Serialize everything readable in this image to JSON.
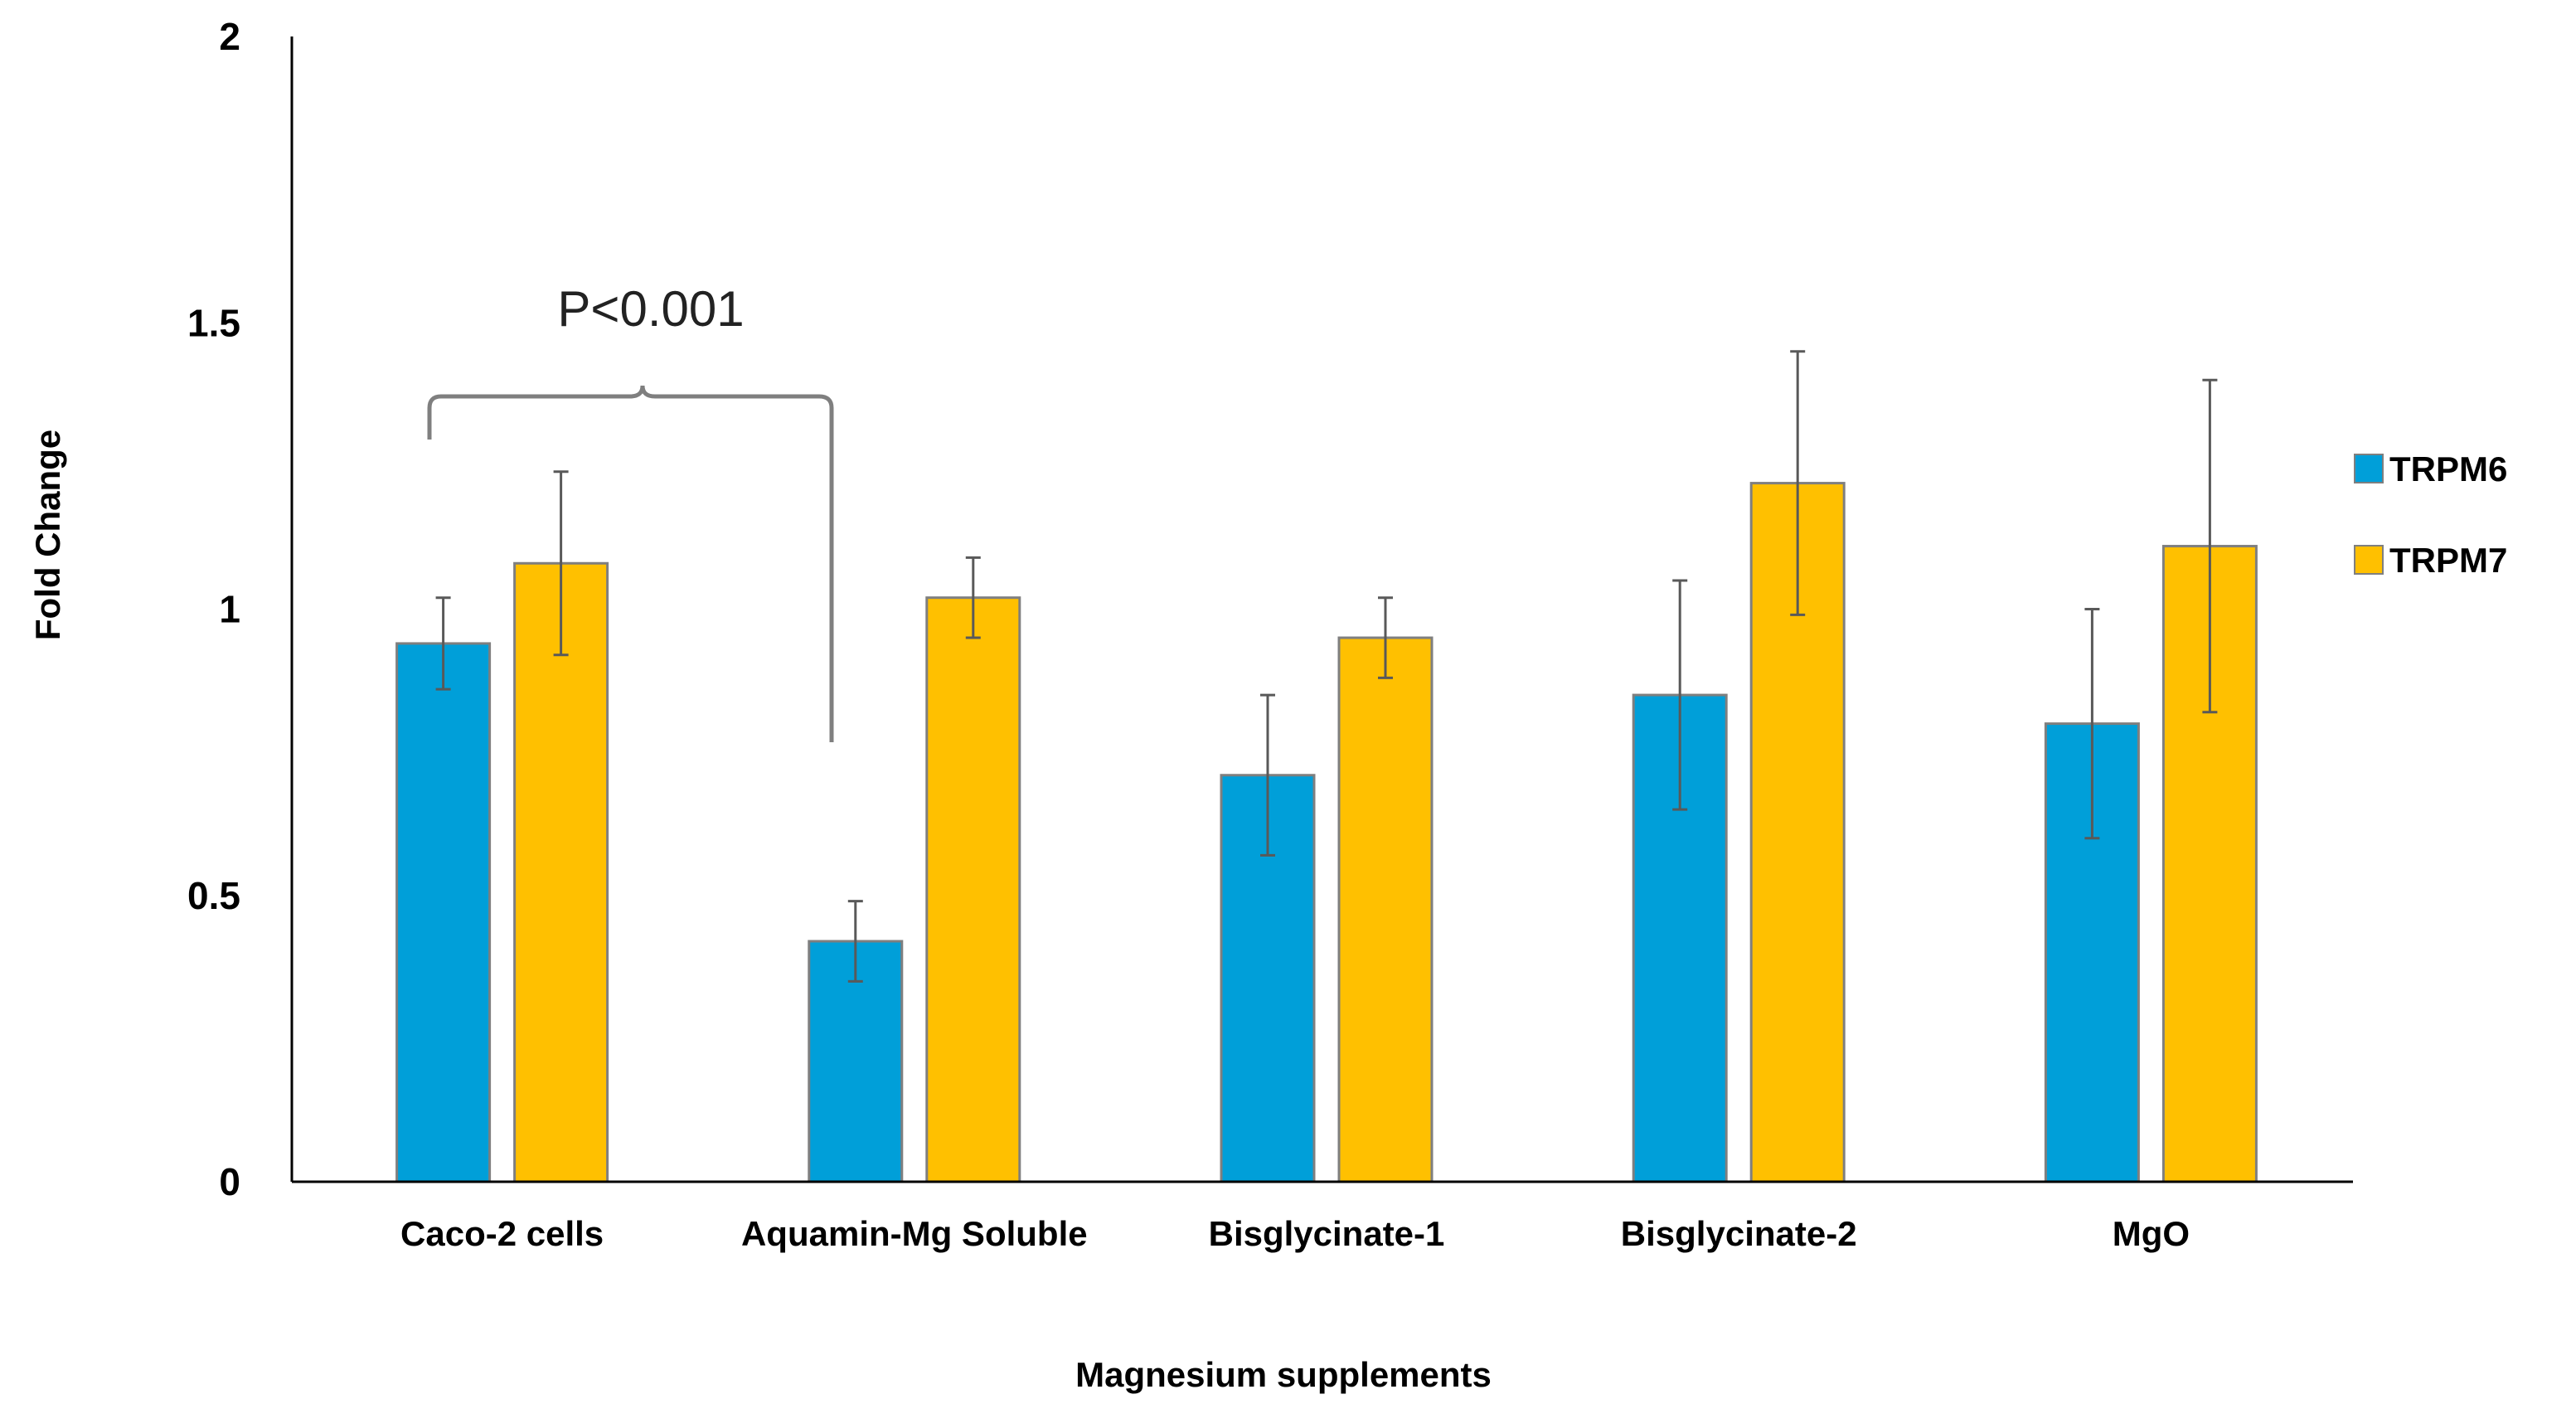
{
  "chart_data": {
    "type": "bar",
    "title": "",
    "xlabel": "Magnesium supplements",
    "ylabel": "Fold Change",
    "ylim": [
      0,
      2
    ],
    "yticks": [
      "0",
      "0.5",
      "1",
      "1.5",
      "2"
    ],
    "ytick_values": [
      0,
      0.5,
      1,
      1.5,
      2
    ],
    "grid": false,
    "legend_position": "right",
    "categories": [
      "Caco-2 cells",
      "Aquamin-Mg Soluble",
      "Bisglycinate-1",
      "Bisglycinate-2",
      "MgO"
    ],
    "series": [
      {
        "name": "TRPM6",
        "color": "#009FD9",
        "values": [
          0.94,
          0.42,
          0.71,
          0.85,
          0.8
        ],
        "error": [
          0.08,
          0.07,
          0.14,
          0.2,
          0.2
        ]
      },
      {
        "name": "TRPM7",
        "color": "#FFC000",
        "values": [
          1.08,
          1.02,
          0.95,
          1.22,
          1.11
        ],
        "error": [
          0.16,
          0.07,
          0.07,
          0.23,
          0.29
        ]
      }
    ],
    "annotations": [
      {
        "text": "P<0.001",
        "between": [
          "Caco-2 cells",
          "Aquamin-Mg Soluble"
        ]
      }
    ]
  }
}
